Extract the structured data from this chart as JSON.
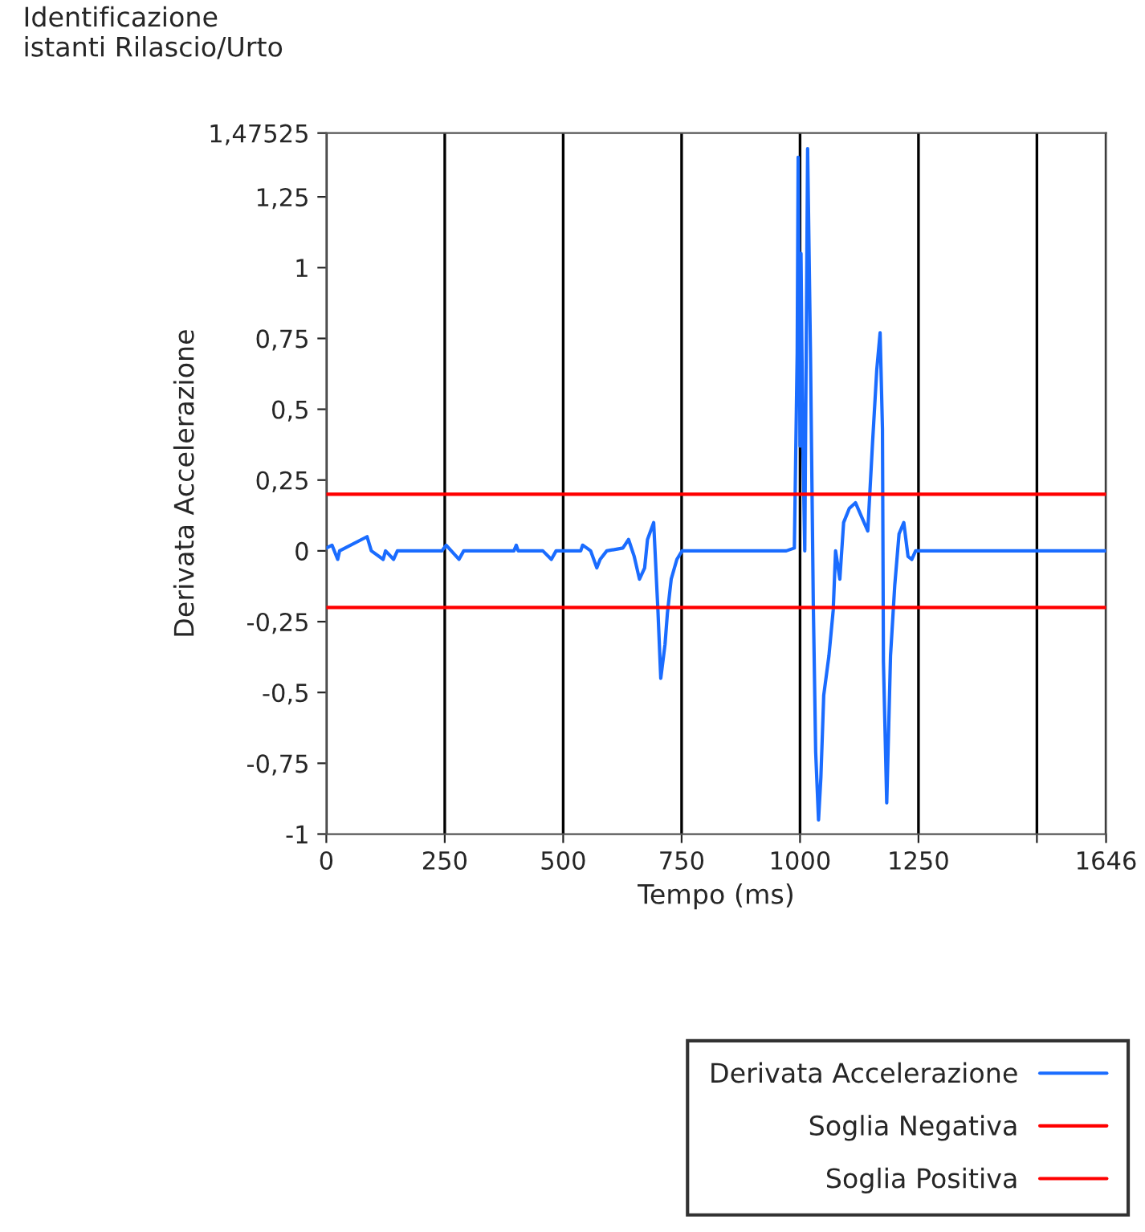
{
  "chart_data": {
    "type": "line",
    "title": "Identificazione\nistanti Rilascio/Urto",
    "xlabel": "Tempo (ms)",
    "ylabel": "Derivata Accelerazione",
    "xlim": [
      0,
      1646
    ],
    "xticks": [
      0,
      250,
      500,
      750,
      1000,
      1250,
      {
        "value": 1500,
        "label": null
      },
      1646
    ],
    "ylim": [
      -1,
      1.47525
    ],
    "yticks": [
      {
        "value": -1,
        "label": "-1"
      },
      {
        "value": -0.75,
        "label": "-0,75"
      },
      {
        "value": -0.5,
        "label": "-0,5"
      },
      {
        "value": -0.25,
        "label": "-0,25"
      },
      {
        "value": 0,
        "label": "0"
      },
      {
        "value": 0.25,
        "label": "0,25"
      },
      {
        "value": 0.5,
        "label": "0,5"
      },
      {
        "value": 0.75,
        "label": "0,75"
      },
      {
        "value": 1,
        "label": "1"
      },
      {
        "value": 1.25,
        "label": "1,25"
      },
      {
        "value": 1.47525,
        "label": "1,47525"
      }
    ],
    "grid": "x",
    "legend": "bottom",
    "series": [
      {
        "name": "Derivata Accelerazione",
        "color": "#1a6cff",
        "x": [
          0,
          12,
          24,
          28,
          86,
          95,
          120,
          125,
          142,
          150,
          244,
          253,
          280,
          290,
          396,
          401,
          405,
          457,
          475,
          485,
          537,
          541,
          550,
          558,
          571,
          578,
          592,
          626,
          638,
          650,
          661,
          672,
          678,
          691,
          700,
          706,
          715,
          720,
          728,
          740,
          751,
          971,
          988,
          994,
          996,
          1000,
          1002,
          1006,
          1010,
          1016,
          1022,
          1028,
          1033,
          1039,
          1044,
          1050,
          1061,
          1070,
          1075,
          1084,
          1092,
          1104,
          1117,
          1130,
          1143,
          1153,
          1162,
          1169,
          1174,
          1176,
          1183,
          1191,
          1200,
          1209,
          1219,
          1228,
          1236,
          1244,
          1253,
          1646
        ],
        "values": [
          0.01,
          0.02,
          -0.03,
          0,
          0.05,
          0,
          -0.03,
          0,
          -0.03,
          0,
          0,
          0.02,
          -0.03,
          0,
          0,
          0.02,
          0,
          0,
          -0.03,
          0,
          0,
          0.02,
          0.01,
          0,
          -0.06,
          -0.03,
          0,
          0.01,
          0.04,
          -0.02,
          -0.1,
          -0.06,
          0.04,
          0.1,
          -0.21,
          -0.45,
          -0.33,
          -0.22,
          -0.1,
          -0.03,
          0,
          0,
          0.01,
          0.7,
          1.39,
          0.37,
          1.05,
          0.37,
          0,
          1.42,
          0.7,
          -0.19,
          -0.71,
          -0.95,
          -0.8,
          -0.51,
          -0.37,
          -0.21,
          0,
          -0.1,
          0.1,
          0.15,
          0.17,
          0.12,
          0.07,
          0.38,
          0.64,
          0.77,
          0.43,
          -0.39,
          -0.89,
          -0.37,
          -0.12,
          0.06,
          0.1,
          -0.02,
          -0.03,
          0,
          0,
          0
        ]
      },
      {
        "name": "Soglia Negativa",
        "color": "#ff0000",
        "x": [
          0,
          1646
        ],
        "values": [
          -0.2,
          -0.2
        ]
      },
      {
        "name": "Soglia Positiva",
        "color": "#ff0000",
        "x": [
          0,
          1646
        ],
        "values": [
          0.2,
          0.2
        ]
      }
    ]
  }
}
